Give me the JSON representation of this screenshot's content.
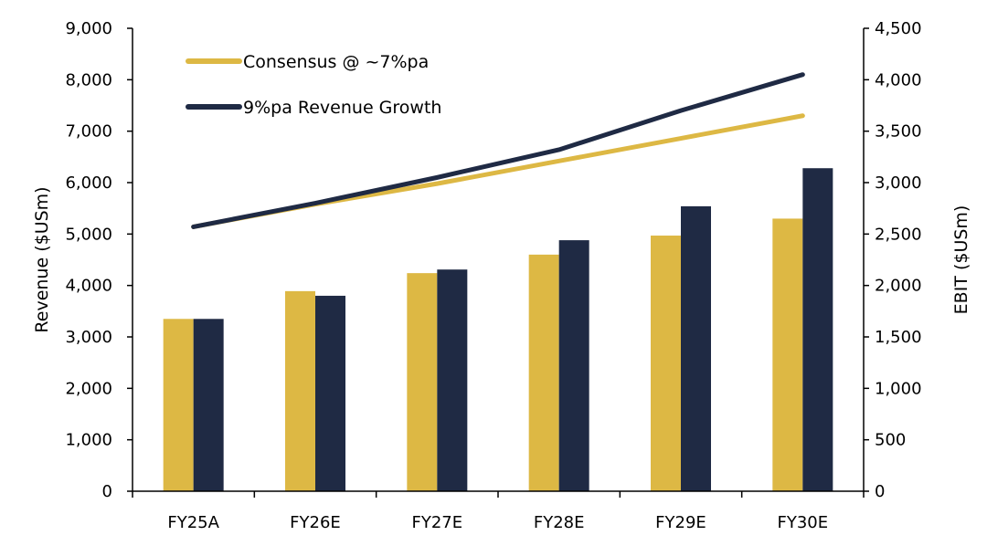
{
  "chart_data": {
    "type": "bar",
    "categories": [
      "FY25A",
      "FY26E",
      "FY27E",
      "FY28E",
      "FY29E",
      "FY30E"
    ],
    "left_axis": {
      "label": "Revenue ($USm)",
      "ylim": [
        0,
        9000
      ],
      "ticks": [
        "0",
        "1,000",
        "2,000",
        "3,000",
        "4,000",
        "5,000",
        "6,000",
        "7,000",
        "8,000",
        "9,000"
      ]
    },
    "right_axis": {
      "label": "EBIT ($USm)",
      "ylim": [
        0,
        4500
      ],
      "ticks": [
        "0",
        "500",
        "1,000",
        "1,500",
        "2,000",
        "2,500",
        "3,000",
        "3,500",
        "4,000",
        "4,500"
      ]
    },
    "series": [
      {
        "name": "Consensus @ ~7%pa",
        "color": "#DDB844",
        "bar_values": [
          3350,
          3890,
          4240,
          4600,
          4970,
          5300
        ],
        "line_values": [
          2570,
          2790,
          2990,
          3210,
          3430,
          3650
        ]
      },
      {
        "name": "9%pa Revenue Growth",
        "color": "#1F2A44",
        "bar_values": [
          3350,
          3800,
          4310,
          4880,
          5540,
          6280
        ],
        "line_values": [
          2570,
          2800,
          3050,
          3320,
          3700,
          4050
        ]
      }
    ],
    "legend_position": "top-left",
    "grid": false
  }
}
